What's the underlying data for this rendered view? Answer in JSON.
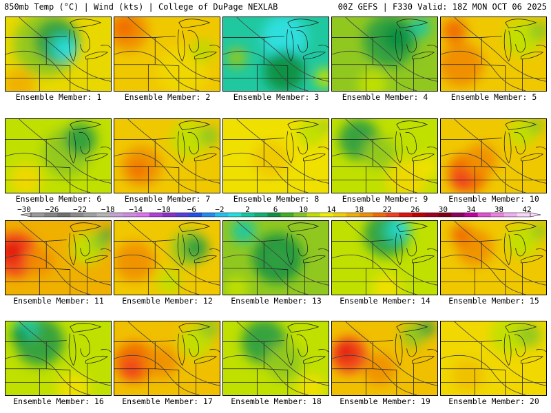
{
  "header": {
    "left": "850mb Temp (°C) | Wind (kts) | College of DuPage NEXLAB",
    "right": "00Z GEFS | F330 Valid: 18Z MON OCT 06 2025"
  },
  "colorbar": {
    "labels": [
      "−30",
      "−26",
      "−22",
      "−18",
      "−14",
      "−10",
      "−6",
      "−2",
      "2",
      "6",
      "10",
      "14",
      "18",
      "22",
      "26",
      "30",
      "34",
      "38",
      "42"
    ],
    "colors": [
      "#9a9a9a",
      "#858585",
      "#707070",
      "#8a8a8a",
      "#a0a0a0",
      "#b5b5b5",
      "#c4a2d6",
      "#d08be0",
      "#e070f0",
      "#b040d8",
      "#8a30c8",
      "#5a3cd8",
      "#2050e8",
      "#1e8cf0",
      "#20c0f0",
      "#20e0e0",
      "#10c8a0",
      "#10b070",
      "#109040",
      "#40b020",
      "#80c820",
      "#c0e000",
      "#f0f000",
      "#f0d000",
      "#f0b000",
      "#f09000",
      "#f06a00",
      "#f04020",
      "#e01010",
      "#c00000",
      "#a00020",
      "#800010",
      "#900060",
      "#c000a0",
      "#e050d0",
      "#f080e0",
      "#f0b0f0",
      "#f8d8f8"
    ]
  },
  "members": [
    {
      "label": "Ensemble Member: 1",
      "base": "#e8d800",
      "blobs": [
        [
          "#90c820",
          60,
          40,
          80
        ],
        [
          "#30a040",
          75,
          35,
          55
        ],
        [
          "#20c8b0",
          85,
          45,
          35
        ],
        [
          "#30e0e0",
          90,
          48,
          22
        ],
        [
          "#f0b000",
          20,
          100,
          40
        ]
      ]
    },
    {
      "label": "Ensemble Member: 2",
      "base": "#f0c800",
      "blobs": [
        [
          "#f08c00",
          20,
          20,
          50
        ],
        [
          "#f06a00",
          15,
          15,
          25
        ],
        [
          "#f0d800",
          100,
          80,
          60
        ],
        [
          "#c0d800",
          130,
          50,
          30
        ]
      ]
    },
    {
      "label": "Ensemble Member: 3",
      "base": "#20c8a0",
      "blobs": [
        [
          "#30e0e0",
          90,
          30,
          55
        ],
        [
          "#109040",
          90,
          80,
          50
        ],
        [
          "#90c820",
          20,
          60,
          25
        ],
        [
          "#c0e000",
          150,
          90,
          25
        ]
      ]
    },
    {
      "label": "Ensemble Member: 4",
      "base": "#90c820",
      "blobs": [
        [
          "#30a040",
          85,
          35,
          65
        ],
        [
          "#109040",
          95,
          30,
          35
        ],
        [
          "#20c8a0",
          130,
          15,
          25
        ],
        [
          "#c0e000",
          60,
          100,
          35
        ]
      ]
    },
    {
      "label": "Ensemble Member: 5",
      "base": "#f0c800",
      "blobs": [
        [
          "#f08c00",
          30,
          70,
          55
        ],
        [
          "#f06a00",
          20,
          20,
          30
        ],
        [
          "#c0e000",
          120,
          30,
          45
        ],
        [
          "#90c820",
          145,
          20,
          25
        ]
      ]
    },
    {
      "label": "Ensemble Member: 6",
      "base": "#c0e000",
      "blobs": [
        [
          "#90c820",
          90,
          50,
          60
        ],
        [
          "#30a040",
          110,
          30,
          40
        ],
        [
          "#f0d800",
          30,
          90,
          40
        ]
      ]
    },
    {
      "label": "Ensemble Member: 7",
      "base": "#f0c800",
      "blobs": [
        [
          "#f09000",
          40,
          70,
          50
        ],
        [
          "#f06a00",
          35,
          75,
          20
        ],
        [
          "#c0e000",
          110,
          30,
          45
        ],
        [
          "#90c820",
          140,
          25,
          25
        ]
      ]
    },
    {
      "label": "Ensemble Member: 8",
      "base": "#f0e000",
      "blobs": [
        [
          "#f0c800",
          70,
          60,
          45
        ],
        [
          "#c0e000",
          130,
          20,
          35
        ],
        [
          "#90c820",
          150,
          10,
          15
        ]
      ]
    },
    {
      "label": "Ensemble Member: 9",
      "base": "#c0e000",
      "blobs": [
        [
          "#30a040",
          40,
          30,
          50
        ],
        [
          "#90c820",
          70,
          50,
          40
        ],
        [
          "#f0d800",
          110,
          90,
          50
        ],
        [
          "#f0e000",
          140,
          70,
          30
        ]
      ]
    },
    {
      "label": "Ensemble Member: 10",
      "base": "#f0c800",
      "blobs": [
        [
          "#f06a00",
          40,
          80,
          50
        ],
        [
          "#f04020",
          30,
          90,
          25
        ],
        [
          "#f09000",
          60,
          60,
          40
        ],
        [
          "#c0e000",
          120,
          20,
          35
        ],
        [
          "#90c820",
          140,
          10,
          20
        ]
      ]
    },
    {
      "label": "Ensemble Member: 11",
      "base": "#f0b000",
      "blobs": [
        [
          "#f04020",
          15,
          50,
          55
        ],
        [
          "#e01010",
          10,
          45,
          25
        ],
        [
          "#f08c00",
          50,
          60,
          35
        ],
        [
          "#c0e000",
          120,
          40,
          40
        ],
        [
          "#90c820",
          140,
          30,
          25
        ],
        [
          "#30a040",
          150,
          20,
          15
        ]
      ]
    },
    {
      "label": "Ensemble Member: 12",
      "base": "#f0c800",
      "blobs": [
        [
          "#f09000",
          30,
          60,
          50
        ],
        [
          "#90c820",
          110,
          40,
          45
        ],
        [
          "#30a040",
          120,
          40,
          30
        ],
        [
          "#c0e000",
          80,
          90,
          30
        ]
      ]
    },
    {
      "label": "Ensemble Member: 13",
      "base": "#90c820",
      "blobs": [
        [
          "#109040",
          80,
          55,
          60
        ],
        [
          "#30a040",
          80,
          55,
          40
        ],
        [
          "#20c8a0",
          30,
          15,
          30
        ],
        [
          "#c0e000",
          20,
          100,
          30
        ]
      ]
    },
    {
      "label": "Ensemble Member: 14",
      "base": "#c0e000",
      "blobs": [
        [
          "#30a040",
          80,
          20,
          55
        ],
        [
          "#20c8a0",
          95,
          15,
          35
        ],
        [
          "#30e0e0",
          100,
          10,
          18
        ],
        [
          "#f0e000",
          80,
          100,
          35
        ]
      ]
    },
    {
      "label": "Ensemble Member: 15",
      "base": "#f0c800",
      "blobs": [
        [
          "#f09000",
          50,
          40,
          45
        ],
        [
          "#f06a00",
          30,
          20,
          25
        ],
        [
          "#c0e000",
          120,
          30,
          40
        ],
        [
          "#90c820",
          145,
          15,
          20
        ]
      ]
    },
    {
      "label": "Ensemble Member: 16",
      "base": "#c0e000",
      "blobs": [
        [
          "#30a040",
          50,
          30,
          60
        ],
        [
          "#20c8a0",
          30,
          10,
          30
        ],
        [
          "#109040",
          20,
          20,
          20
        ],
        [
          "#f0e000",
          100,
          100,
          40
        ]
      ]
    },
    {
      "label": "Ensemble Member: 17",
      "base": "#f0c000",
      "blobs": [
        [
          "#f06a00",
          30,
          60,
          50
        ],
        [
          "#f04020",
          25,
          70,
          25
        ],
        [
          "#f09000",
          70,
          60,
          40
        ],
        [
          "#c0e000",
          120,
          30,
          40
        ],
        [
          "#90c820",
          140,
          10,
          25
        ]
      ]
    },
    {
      "label": "Ensemble Member: 18",
      "base": "#c0e000",
      "blobs": [
        [
          "#30a040",
          60,
          30,
          55
        ],
        [
          "#90c820",
          90,
          60,
          45
        ],
        [
          "#f0e000",
          130,
          100,
          35
        ]
      ]
    },
    {
      "label": "Ensemble Member: 19",
      "base": "#f0c000",
      "blobs": [
        [
          "#f04020",
          25,
          50,
          45
        ],
        [
          "#e01010",
          20,
          45,
          20
        ],
        [
          "#f09000",
          70,
          70,
          40
        ],
        [
          "#90c820",
          120,
          20,
          30
        ],
        [
          "#30a040",
          140,
          10,
          20
        ]
      ]
    },
    {
      "label": "Ensemble Member: 20",
      "base": "#f0d800",
      "blobs": [
        [
          "#c0e000",
          100,
          20,
          45
        ],
        [
          "#90c820",
          130,
          20,
          30
        ],
        [
          "#f0c000",
          40,
          80,
          40
        ]
      ]
    }
  ]
}
